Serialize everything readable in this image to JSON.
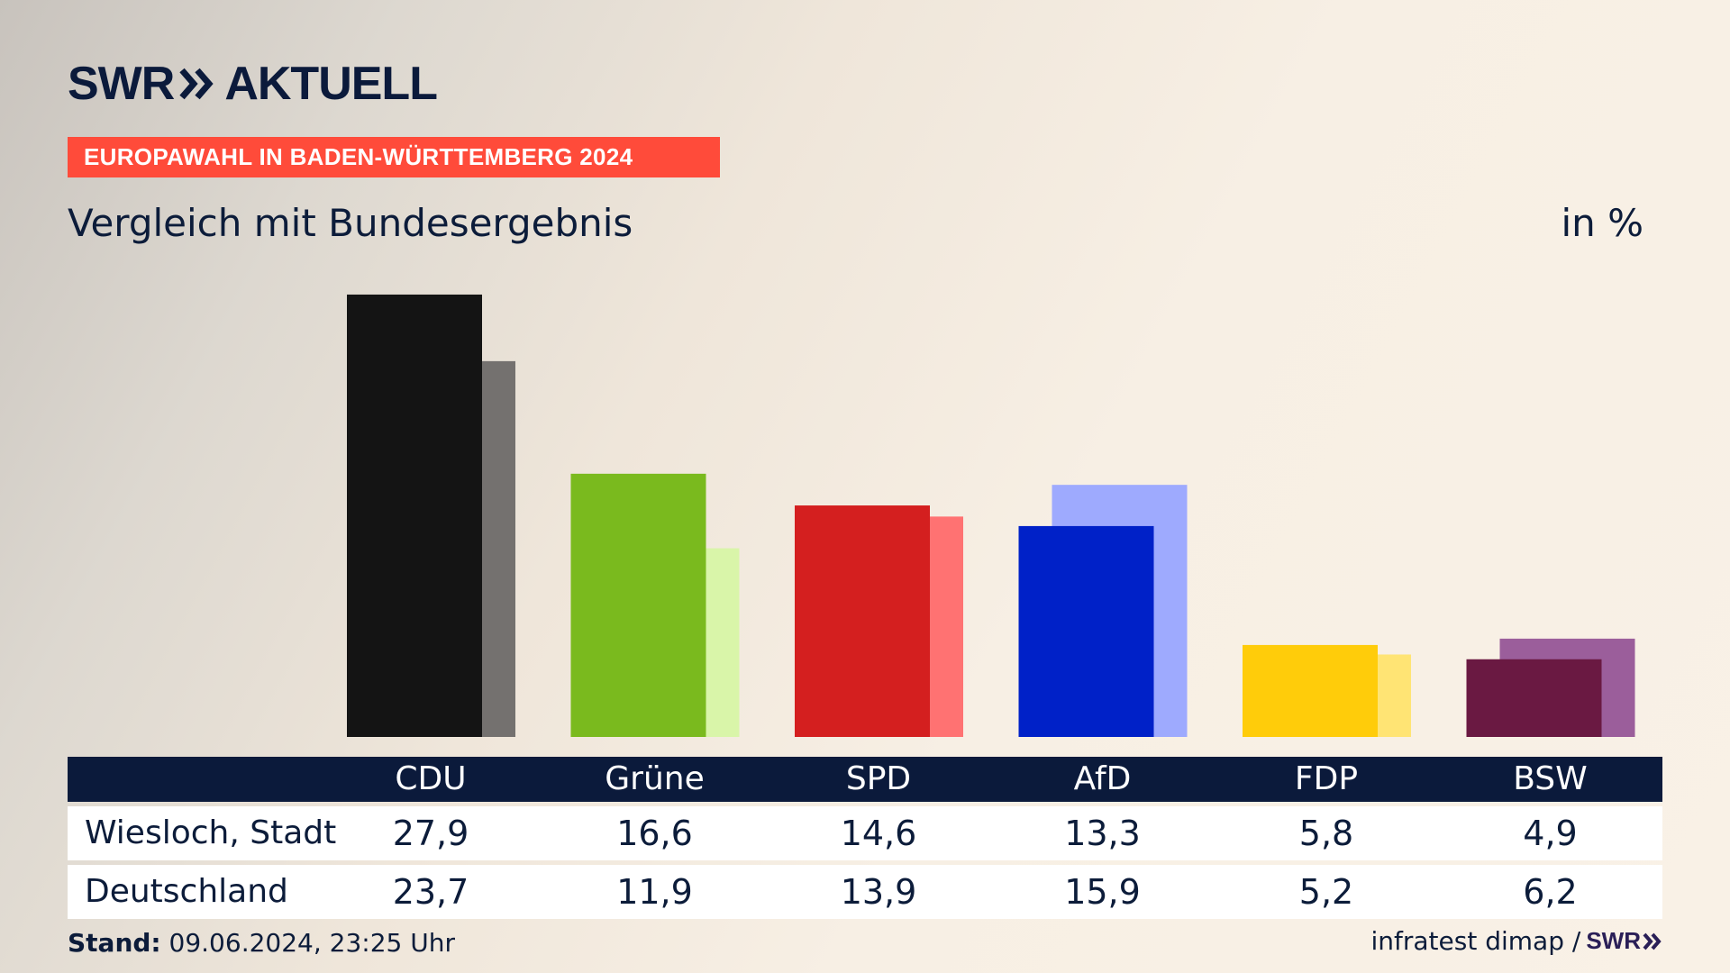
{
  "header": {
    "logo_swr": "SWR",
    "logo_aktuell": "AKTUELL",
    "kicker": "EUROPAWAHL IN BADEN-WÜRTTEMBERG 2024",
    "subtitle": "Vergleich mit Bundesergebnis",
    "unit": "in %"
  },
  "colors": {
    "kicker_bg": "#ff4b3a",
    "table_header_bg": "#0b1a3b",
    "text": "#0c1c3a"
  },
  "chart_data": {
    "type": "bar",
    "categories": [
      "CDU",
      "Grüne",
      "SPD",
      "AfD",
      "FDP",
      "BSW"
    ],
    "series": [
      {
        "name": "Wiesloch, Stadt",
        "values": [
          27.9,
          16.6,
          14.6,
          13.3,
          5.8,
          4.9
        ],
        "colors": [
          "#141414",
          "#7aba1e",
          "#d41f1f",
          "#0021c8",
          "#ffcc0a",
          "#6a1942"
        ]
      },
      {
        "name": "Deutschland",
        "values": [
          23.7,
          11.9,
          13.9,
          15.9,
          5.2,
          6.2
        ],
        "colors": [
          "#74716f",
          "#d9f5a9",
          "#ff7272",
          "#9eaafe",
          "#ffe474",
          "#9b5e9b"
        ]
      }
    ],
    "value_labels": {
      "Wiesloch, Stadt": [
        "27,9",
        "16,6",
        "14,6",
        "13,3",
        "5,8",
        "4,9"
      ],
      "Deutschland": [
        "23,7",
        "11,9",
        "13,9",
        "15,9",
        "5,2",
        "6,2"
      ]
    },
    "ylim": [
      0,
      30
    ],
    "grid": false,
    "legend": "table below chart"
  },
  "footer": {
    "stand_label": "Stand:",
    "stand_value": "09.06.2024, 23:25 Uhr",
    "source": "infratest dimap /",
    "source_brand": "SWR"
  }
}
